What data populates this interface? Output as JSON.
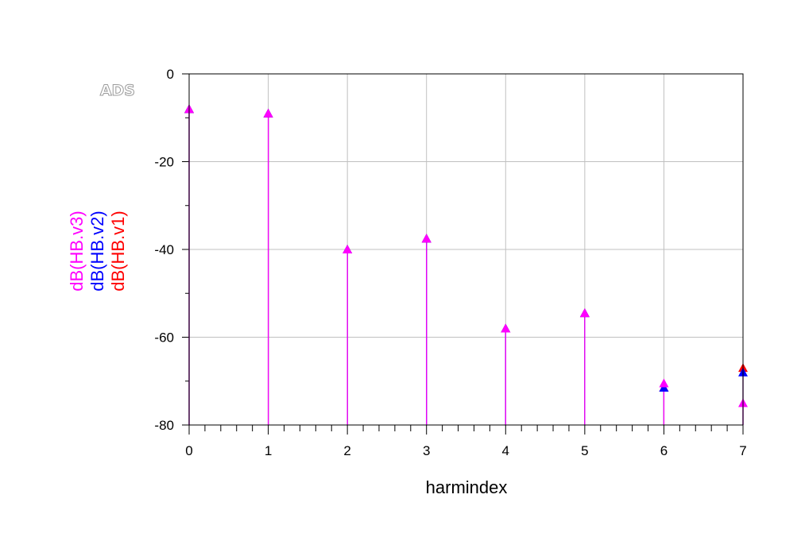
{
  "chart_data": {
    "type": "scatter",
    "style": "stem",
    "marker": "triangle",
    "watermark": "ADS",
    "xlabel": "harmindex",
    "ylabel": "",
    "xlim": [
      0,
      7
    ],
    "ylim": [
      -80,
      0
    ],
    "xticks": [
      "0",
      "1",
      "2",
      "3",
      "4",
      "5",
      "6",
      "7"
    ],
    "yticks": [
      "0",
      "-20",
      "-40",
      "-60",
      "-80"
    ],
    "grid": true,
    "legend_position": "left, vertical",
    "x": [
      0,
      1,
      2,
      3,
      4,
      5,
      6,
      7
    ],
    "series": [
      {
        "name": "dB(HB.v1)",
        "color": "#ff0000",
        "values": [
          -8,
          -9,
          -40,
          -37.5,
          -58,
          -54.5,
          -71.5,
          -67
        ]
      },
      {
        "name": "dB(HB.v2)",
        "color": "#0000ff",
        "values": [
          -8,
          -9,
          -40,
          -37.5,
          -58,
          -54.5,
          -71.5,
          -68
        ]
      },
      {
        "name": "dB(HB.v3)",
        "color": "#ff00ff",
        "values": [
          -8,
          -9,
          -40,
          -37.5,
          -58,
          -54.5,
          -70.5,
          -75
        ]
      }
    ]
  }
}
